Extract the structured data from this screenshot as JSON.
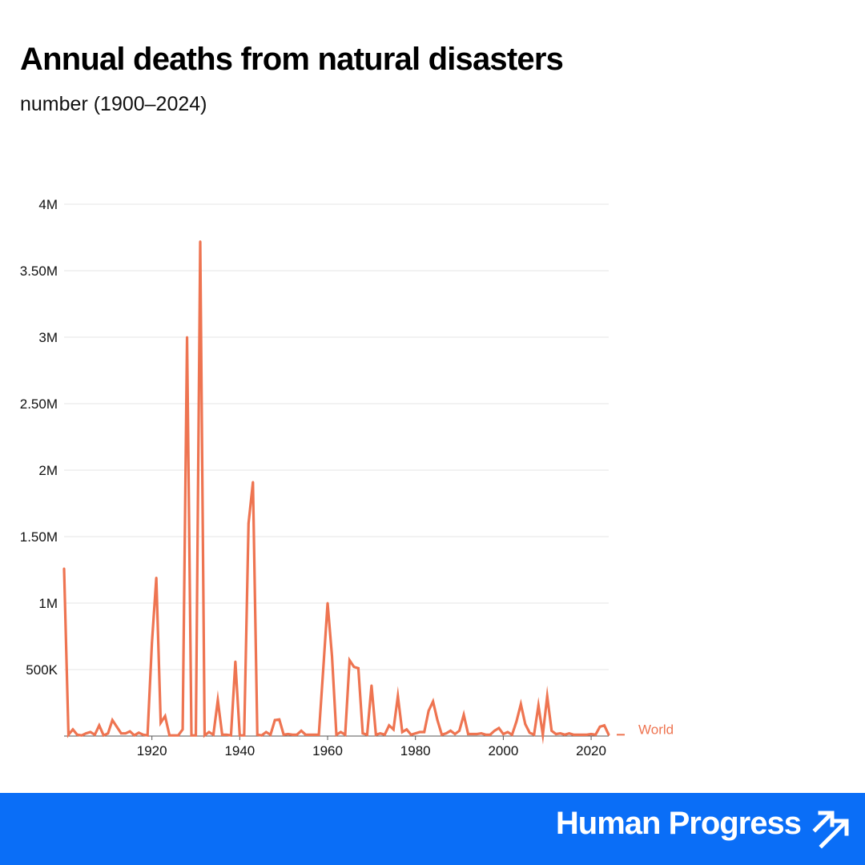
{
  "header": {
    "title": "Annual deaths from natural disasters",
    "subtitle": "number (1900–2024)"
  },
  "footer": {
    "brand": "Human Progress",
    "logo_icon": "double-arrow-up-right-icon"
  },
  "colors": {
    "series": "#ee7451",
    "footer_bg": "#0a6ef7",
    "grid": "#e6e6e6"
  },
  "chart_data": {
    "type": "line",
    "title": "Annual deaths from natural disasters",
    "subtitle": "number (1900–2024)",
    "xlabel": "",
    "ylabel": "",
    "xlim": [
      1900,
      2024
    ],
    "ylim": [
      0,
      4000000
    ],
    "grid": true,
    "legend": "right",
    "x_ticks": [
      {
        "value": 1920,
        "label": "1920"
      },
      {
        "value": 1940,
        "label": "1940"
      },
      {
        "value": 1960,
        "label": "1960"
      },
      {
        "value": 1980,
        "label": "1980"
      },
      {
        "value": 2000,
        "label": "2000"
      },
      {
        "value": 2020,
        "label": "2020"
      }
    ],
    "y_ticks": [
      {
        "value": 500000,
        "label": "500K"
      },
      {
        "value": 1000000,
        "label": "1M"
      },
      {
        "value": 1500000,
        "label": "1.50M"
      },
      {
        "value": 2000000,
        "label": "2M"
      },
      {
        "value": 2500000,
        "label": "2.50M"
      },
      {
        "value": 3000000,
        "label": "3M"
      },
      {
        "value": 3500000,
        "label": "3.50M"
      },
      {
        "value": 4000000,
        "label": "4M"
      }
    ],
    "series": [
      {
        "name": "World",
        "x": [
          1900,
          1901,
          1902,
          1903,
          1904,
          1905,
          1906,
          1907,
          1908,
          1909,
          1910,
          1911,
          1912,
          1913,
          1914,
          1915,
          1916,
          1917,
          1918,
          1919,
          1920,
          1921,
          1922,
          1923,
          1924,
          1925,
          1926,
          1927,
          1928,
          1929,
          1930,
          1931,
          1932,
          1933,
          1934,
          1935,
          1936,
          1937,
          1938,
          1939,
          1940,
          1941,
          1942,
          1943,
          1944,
          1945,
          1946,
          1947,
          1948,
          1949,
          1950,
          1951,
          1952,
          1953,
          1954,
          1955,
          1956,
          1957,
          1958,
          1959,
          1960,
          1961,
          1962,
          1963,
          1964,
          1965,
          1966,
          1967,
          1968,
          1969,
          1970,
          1971,
          1972,
          1973,
          1974,
          1975,
          1976,
          1977,
          1978,
          1979,
          1980,
          1981,
          1982,
          1983,
          1984,
          1985,
          1986,
          1987,
          1988,
          1989,
          1990,
          1991,
          1992,
          1993,
          1994,
          1995,
          1996,
          1997,
          1998,
          1999,
          2000,
          2001,
          2002,
          2003,
          2004,
          2005,
          2006,
          2007,
          2008,
          2009,
          2010,
          2011,
          2012,
          2013,
          2014,
          2015,
          2016,
          2017,
          2018,
          2019,
          2020,
          2021,
          2022,
          2023,
          2024
        ],
        "values": [
          1260000,
          10000,
          50000,
          10000,
          5000,
          20000,
          30000,
          10000,
          80000,
          5000,
          20000,
          120000,
          70000,
          20000,
          20000,
          35000,
          5000,
          25000,
          10000,
          5000,
          700000,
          1190000,
          100000,
          150000,
          5000,
          5000,
          5000,
          50000,
          3000000,
          5000,
          5000,
          3720000,
          5000,
          30000,
          10000,
          270000,
          10000,
          10000,
          5000,
          560000,
          5000,
          5000,
          1600000,
          1910000,
          10000,
          5000,
          30000,
          10000,
          120000,
          125000,
          10000,
          15000,
          10000,
          10000,
          40000,
          10000,
          10000,
          10000,
          10000,
          500000,
          1000000,
          600000,
          10000,
          30000,
          10000,
          570000,
          520000,
          510000,
          20000,
          10000,
          380000,
          10000,
          20000,
          10000,
          80000,
          50000,
          300000,
          30000,
          50000,
          10000,
          20000,
          30000,
          30000,
          190000,
          260000,
          120000,
          10000,
          20000,
          40000,
          15000,
          40000,
          160000,
          15000,
          15000,
          15000,
          20000,
          10000,
          10000,
          40000,
          60000,
          15000,
          30000,
          10000,
          110000,
          240000,
          90000,
          25000,
          10000,
          230000,
          10000,
          300000,
          40000,
          15000,
          20000,
          10000,
          20000,
          10000,
          10000,
          10000,
          10000,
          15000,
          10000,
          70000,
          80000,
          10000
        ]
      }
    ]
  }
}
